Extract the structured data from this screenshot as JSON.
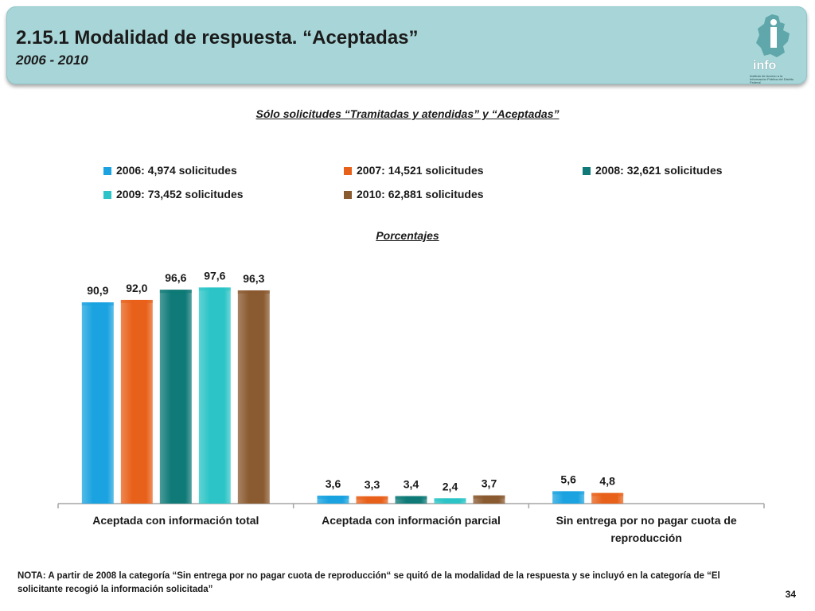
{
  "header": {
    "title": "2.15.1 Modalidad de respuesta. “Aceptadas”",
    "subtitle": "2006 - 2010",
    "logo_text": "info",
    "logo_sub": "Instituto de Acceso a la Información Pública del Distrito Federal"
  },
  "chart_title": "Sólo solicitudes “Tramitadas y atendidas” y “Aceptadas”",
  "percent_label": "Porcentajes",
  "colors": {
    "header_bg": "#a8d6d8",
    "series": [
      "#1aa3e0",
      "#e8611a",
      "#0f7a77",
      "#2cc4c6",
      "#8a5a30"
    ]
  },
  "chart_data": {
    "type": "bar",
    "categories": [
      "Aceptada con información total",
      "Aceptada con información parcial",
      "Sin entrega por no pagar cuota de reproducción"
    ],
    "category_lines": [
      [
        "Aceptada con información total"
      ],
      [
        "Aceptada con información parcial"
      ],
      [
        "Sin entrega por no pagar cuota de",
        "reproducción"
      ]
    ],
    "series": [
      {
        "name": "2006: 4,974 solicitudes",
        "values": [
          90.9,
          3.6,
          5.6
        ],
        "labels": [
          "90,9",
          "3,6",
          "5,6"
        ]
      },
      {
        "name": "2007: 14,521 solicitudes",
        "values": [
          92.0,
          3.3,
          4.8
        ],
        "labels": [
          "92,0",
          "3,3",
          "4,8"
        ]
      },
      {
        "name": "2008: 32,621 solicitudes",
        "values": [
          96.6,
          3.4,
          null
        ],
        "labels": [
          "96,6",
          "3,4",
          ""
        ]
      },
      {
        "name": "2009: 73,452 solicitudes",
        "values": [
          97.6,
          2.4,
          null
        ],
        "labels": [
          "97,6",
          "2,4",
          ""
        ]
      },
      {
        "name": "2010: 62,881 solicitudes",
        "values": [
          96.3,
          3.7,
          null
        ],
        "labels": [
          "96,3",
          "3,7",
          ""
        ]
      }
    ],
    "ylim": [
      0,
      100
    ],
    "grid": false,
    "legend_position": "top"
  },
  "note": "NOTA: A partir de 2008 la categoría “Sin entrega por no pagar cuota de reproducción“ se quitó de la modalidad de la respuesta y se incluyó en la categoría de “El solicitante recogió la información solicitada”",
  "page_number": "34"
}
